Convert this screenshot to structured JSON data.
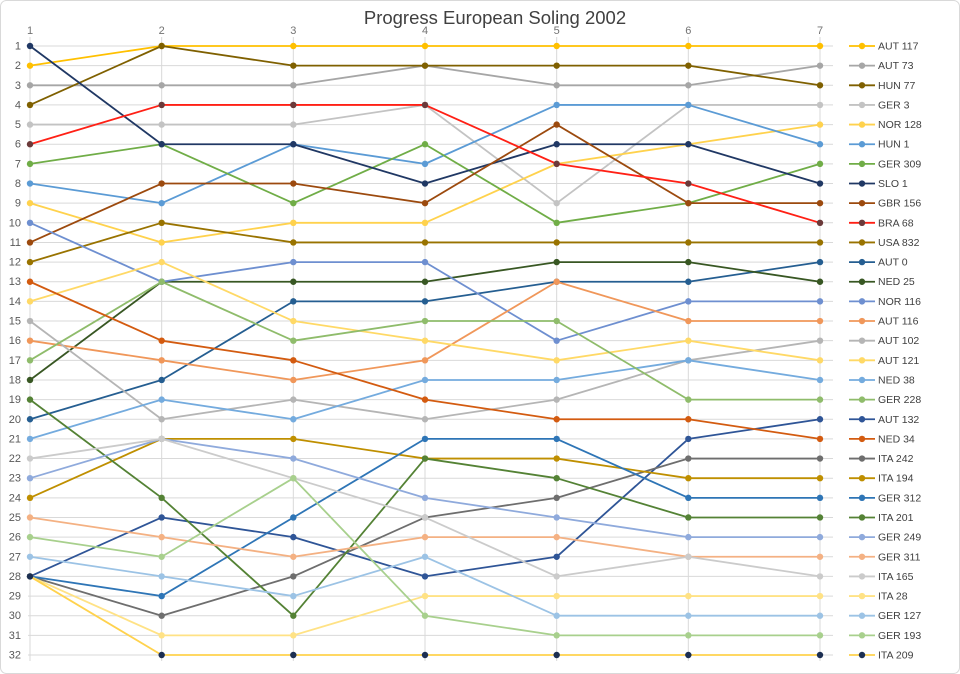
{
  "title": "Progress European Soling 2002",
  "axes": {
    "x_ticks": [
      "1",
      "2",
      "3",
      "4",
      "5",
      "6",
      "7"
    ],
    "y_ticks": [
      "1",
      "2",
      "3",
      "4",
      "5",
      "6",
      "7",
      "8",
      "9",
      "10",
      "11",
      "12",
      "13",
      "14",
      "15",
      "16",
      "17",
      "18",
      "19",
      "20",
      "21",
      "22",
      "23",
      "24",
      "25",
      "26",
      "27",
      "28",
      "29",
      "30",
      "31",
      "32"
    ]
  },
  "style_colors": {
    "border": "#D9D9D9",
    "grid": "#D9D9D9",
    "title_text": "#404040",
    "y_tick_text": "#595959",
    "x_tick_text": "#737373",
    "legend_text": "#404040",
    "background": "#FFFFFF"
  },
  "chart_data": {
    "type": "line",
    "title": "Progress European Soling 2002",
    "xlabel": "",
    "ylabel": "",
    "x": [
      1,
      2,
      3,
      4,
      5,
      6,
      7
    ],
    "ylim": [
      1,
      32
    ],
    "y_inverted": true,
    "grid": true,
    "legend_position": "right",
    "series": [
      {
        "name": "AUT 117",
        "color": "#FFC000",
        "marker_color": "#FFC000",
        "values": [
          2,
          1,
          1,
          1,
          1,
          1,
          1
        ]
      },
      {
        "name": "AUT 73",
        "color": "#A6A6A6",
        "marker_color": "#A6A6A6",
        "values": [
          3,
          3,
          3,
          2,
          3,
          3,
          2
        ]
      },
      {
        "name": "HUN 77",
        "color": "#7F6000",
        "marker_color": "#7F6000",
        "values": [
          4,
          1,
          2,
          2,
          2,
          2,
          3
        ]
      },
      {
        "name": "GER 3",
        "color": "#C3C3C3",
        "marker_color": "#C3C3C3",
        "values": [
          5,
          5,
          5,
          4,
          9,
          4,
          4
        ]
      },
      {
        "name": "NOR 128",
        "color": "#FFD24D",
        "marker_color": "#FFD24D",
        "values": [
          9,
          11,
          10,
          10,
          7,
          6,
          5
        ]
      },
      {
        "name": "HUN 1",
        "color": "#5B9BD5",
        "marker_color": "#5B9BD5",
        "values": [
          8,
          9,
          6,
          7,
          4,
          4,
          6
        ]
      },
      {
        "name": "GER 309",
        "color": "#70AD47",
        "marker_color": "#70AD47",
        "values": [
          7,
          6,
          9,
          6,
          10,
          9,
          7
        ]
      },
      {
        "name": "SLO 1",
        "color": "#203864",
        "marker_color": "#203864",
        "values": [
          1,
          6,
          6,
          8,
          6,
          6,
          8
        ]
      },
      {
        "name": "GBR 156",
        "color": "#9C4A0E",
        "marker_color": "#9C4A0E",
        "values": [
          11,
          8,
          8,
          9,
          5,
          9,
          9
        ]
      },
      {
        "name": "BRA 68",
        "color": "#FF2015",
        "marker_color": "#6B3A3A",
        "values": [
          6,
          4,
          4,
          4,
          7,
          8,
          10
        ]
      },
      {
        "name": "USA 832",
        "color": "#997300",
        "marker_color": "#997300",
        "values": [
          12,
          10,
          11,
          11,
          11,
          11,
          11
        ]
      },
      {
        "name": "AUT 0",
        "color": "#255E91",
        "marker_color": "#255E91",
        "values": [
          20,
          18,
          14,
          14,
          13,
          13,
          12
        ]
      },
      {
        "name": "NED 25",
        "color": "#385723",
        "marker_color": "#385723",
        "values": [
          18,
          13,
          13,
          13,
          12,
          12,
          13
        ]
      },
      {
        "name": "NOR 116",
        "color": "#6E8FD0",
        "marker_color": "#6E8FD0",
        "values": [
          10,
          13,
          12,
          12,
          16,
          14,
          14
        ]
      },
      {
        "name": "AUT 116",
        "color": "#F0975A",
        "marker_color": "#F0975A",
        "values": [
          16,
          17,
          18,
          17,
          13,
          15,
          15
        ]
      },
      {
        "name": "AUT 102",
        "color": "#B5B5B5",
        "marker_color": "#B5B5B5",
        "values": [
          15,
          20,
          19,
          20,
          19,
          17,
          16
        ]
      },
      {
        "name": "AUT 121",
        "color": "#FFD966",
        "marker_color": "#FFD966",
        "values": [
          14,
          12,
          15,
          16,
          17,
          16,
          17
        ]
      },
      {
        "name": "NED 38",
        "color": "#74ABDE",
        "marker_color": "#74ABDE",
        "values": [
          21,
          19,
          20,
          18,
          18,
          17,
          18
        ]
      },
      {
        "name": "GER 228",
        "color": "#8FBC6B",
        "marker_color": "#8FBC6B",
        "values": [
          17,
          13,
          16,
          15,
          15,
          19,
          19
        ]
      },
      {
        "name": "AUT 132",
        "color": "#2F5597",
        "marker_color": "#2F5597",
        "values": [
          28,
          25,
          26,
          28,
          27,
          21,
          20
        ]
      },
      {
        "name": "NED 34",
        "color": "#D35B10",
        "marker_color": "#D35B10",
        "values": [
          13,
          16,
          17,
          19,
          20,
          20,
          21
        ]
      },
      {
        "name": "ITA 242",
        "color": "#6E6E6E",
        "marker_color": "#6E6E6E",
        "values": [
          28,
          30,
          28,
          25,
          24,
          22,
          22
        ]
      },
      {
        "name": "ITA 194",
        "color": "#BF8F00",
        "marker_color": "#BF8F00",
        "values": [
          24,
          21,
          21,
          22,
          22,
          23,
          23
        ]
      },
      {
        "name": "GER 312",
        "color": "#2E75B6",
        "marker_color": "#2E75B6",
        "values": [
          28,
          29,
          25,
          21,
          21,
          24,
          24
        ]
      },
      {
        "name": "ITA 201",
        "color": "#548235",
        "marker_color": "#548235",
        "values": [
          19,
          24,
          30,
          22,
          23,
          25,
          25
        ]
      },
      {
        "name": "GER 249",
        "color": "#8FAADC",
        "marker_color": "#8FAADC",
        "values": [
          23,
          21,
          22,
          24,
          25,
          26,
          26
        ]
      },
      {
        "name": "GER 311",
        "color": "#F4B183",
        "marker_color": "#F4B183",
        "values": [
          25,
          26,
          27,
          26,
          26,
          27,
          27
        ]
      },
      {
        "name": "ITA 165",
        "color": "#CBCBCB",
        "marker_color": "#CBCBCB",
        "values": [
          22,
          21,
          23,
          25,
          28,
          27,
          28
        ]
      },
      {
        "name": "ITA 28",
        "color": "#FFE285",
        "marker_color": "#FFE285",
        "values": [
          28,
          31,
          31,
          29,
          29,
          29,
          29
        ]
      },
      {
        "name": "GER 127",
        "color": "#9CC3E5",
        "marker_color": "#9CC3E5",
        "values": [
          27,
          28,
          29,
          27,
          30,
          30,
          30
        ]
      },
      {
        "name": "GER 193",
        "color": "#A8D08D",
        "marker_color": "#A8D08D",
        "values": [
          26,
          27,
          23,
          30,
          31,
          31,
          31
        ]
      },
      {
        "name": "ITA 209",
        "color": "#FFD24D",
        "marker_color": "#1C2F52",
        "values": [
          28,
          32,
          32,
          32,
          32,
          32,
          32
        ]
      }
    ]
  }
}
